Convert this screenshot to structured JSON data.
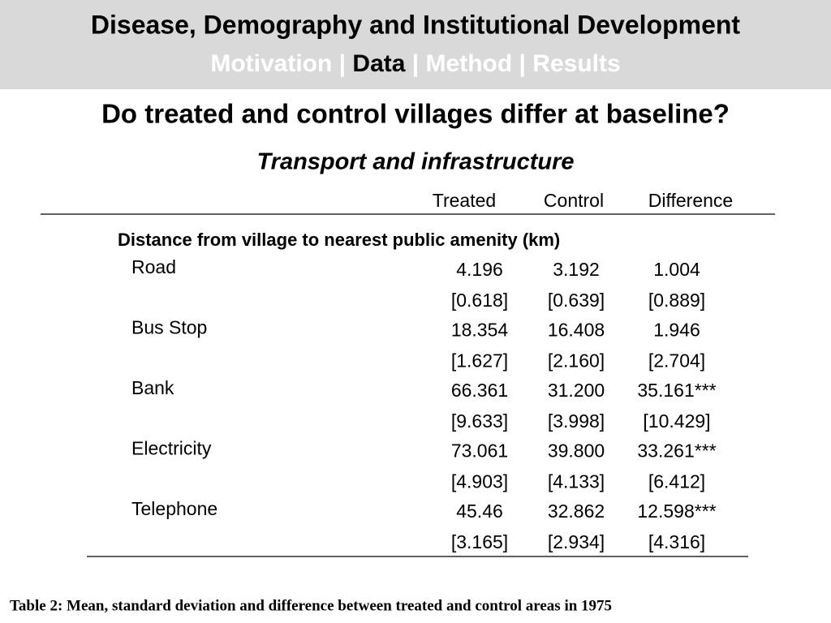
{
  "header": {
    "title": "Disease, Demography and Institutional Development",
    "nav": [
      "Motivation",
      "Data",
      "Method",
      "Results"
    ],
    "nav_separator": "|",
    "active": 1
  },
  "heading": "Do treated and control villages differ at baseline?",
  "subheading": "Transport and infrastructure",
  "table": {
    "columns": [
      "Treated",
      "Control",
      "Difference"
    ],
    "section": "Distance from village to nearest public amenity (km)",
    "rows": [
      {
        "label": "Road",
        "mean": [
          "4.196",
          "3.192",
          "1.004"
        ],
        "sd": [
          "[0.618]",
          "[0.639]",
          "[0.889]"
        ]
      },
      {
        "label": "Bus Stop",
        "mean": [
          "18.354",
          "16.408",
          "1.946"
        ],
        "sd": [
          "[1.627]",
          "[2.160]",
          "[2.704]"
        ]
      },
      {
        "label": "Bank",
        "mean": [
          "66.361",
          "31.200",
          "35.161***"
        ],
        "sd": [
          "[9.633]",
          "[3.998]",
          "[10.429]"
        ]
      },
      {
        "label": "Electricity",
        "mean": [
          "73.061",
          "39.800",
          "33.261***"
        ],
        "sd": [
          "[4.903]",
          "[4.133]",
          "[6.412]"
        ]
      },
      {
        "label": "Telephone",
        "mean": [
          "45.46",
          "32.862",
          "12.598***"
        ],
        "sd": [
          "[3.165]",
          "[2.934]",
          "[4.316]"
        ]
      }
    ]
  },
  "caption": "Table 2:  Mean, standard deviation and difference between treated and control areas in 1975"
}
